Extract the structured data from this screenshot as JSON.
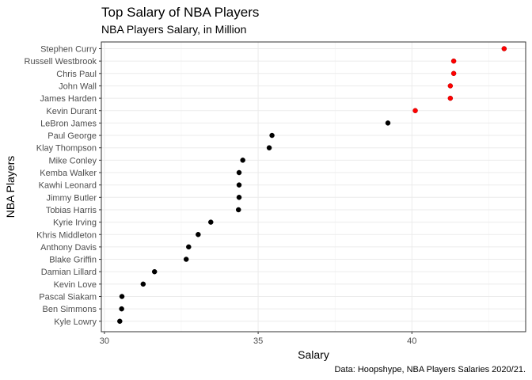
{
  "chart_data": {
    "type": "scatter",
    "title": "Top Salary of NBA Players",
    "subtitle": "NBA Players Salary, in Million",
    "xlabel": "Salary",
    "ylabel": "NBA Players",
    "caption": "Data: Hoopshype, NBA Players Salaries 2020/21.",
    "xlim": [
      29.9,
      43.7
    ],
    "xticks": [
      30,
      35,
      40
    ],
    "grid": true,
    "highlight_color": "#ff0000",
    "default_color": "#000000",
    "players": [
      {
        "name": "Stephen Curry",
        "salary": 43.0,
        "highlight": true
      },
      {
        "name": "Russell Westbrook",
        "salary": 41.36,
        "highlight": true
      },
      {
        "name": "Chris Paul",
        "salary": 41.36,
        "highlight": true
      },
      {
        "name": "John Wall",
        "salary": 41.25,
        "highlight": true
      },
      {
        "name": "James Harden",
        "salary": 41.25,
        "highlight": true
      },
      {
        "name": "Kevin Durant",
        "salary": 40.11,
        "highlight": true
      },
      {
        "name": "LeBron James",
        "salary": 39.22,
        "highlight": false
      },
      {
        "name": "Paul George",
        "salary": 35.45,
        "highlight": false
      },
      {
        "name": "Klay Thompson",
        "salary": 35.36,
        "highlight": false
      },
      {
        "name": "Mike Conley",
        "salary": 34.5,
        "highlight": false
      },
      {
        "name": "Kemba Walker",
        "salary": 34.38,
        "highlight": false
      },
      {
        "name": "Kawhi Leonard",
        "salary": 34.38,
        "highlight": false
      },
      {
        "name": "Jimmy Butler",
        "salary": 34.38,
        "highlight": false
      },
      {
        "name": "Tobias Harris",
        "salary": 34.36,
        "highlight": false
      },
      {
        "name": "Kyrie Irving",
        "salary": 33.46,
        "highlight": false
      },
      {
        "name": "Khris Middleton",
        "salary": 33.05,
        "highlight": false
      },
      {
        "name": "Anthony Davis",
        "salary": 32.74,
        "highlight": false
      },
      {
        "name": "Blake Griffin",
        "salary": 32.66,
        "highlight": false
      },
      {
        "name": "Damian Lillard",
        "salary": 31.63,
        "highlight": false
      },
      {
        "name": "Kevin Love",
        "salary": 31.26,
        "highlight": false
      },
      {
        "name": "Pascal Siakam",
        "salary": 30.57,
        "highlight": false
      },
      {
        "name": "Ben Simmons",
        "salary": 30.56,
        "highlight": false
      },
      {
        "name": "Kyle Lowry",
        "salary": 30.5,
        "highlight": false
      }
    ]
  }
}
